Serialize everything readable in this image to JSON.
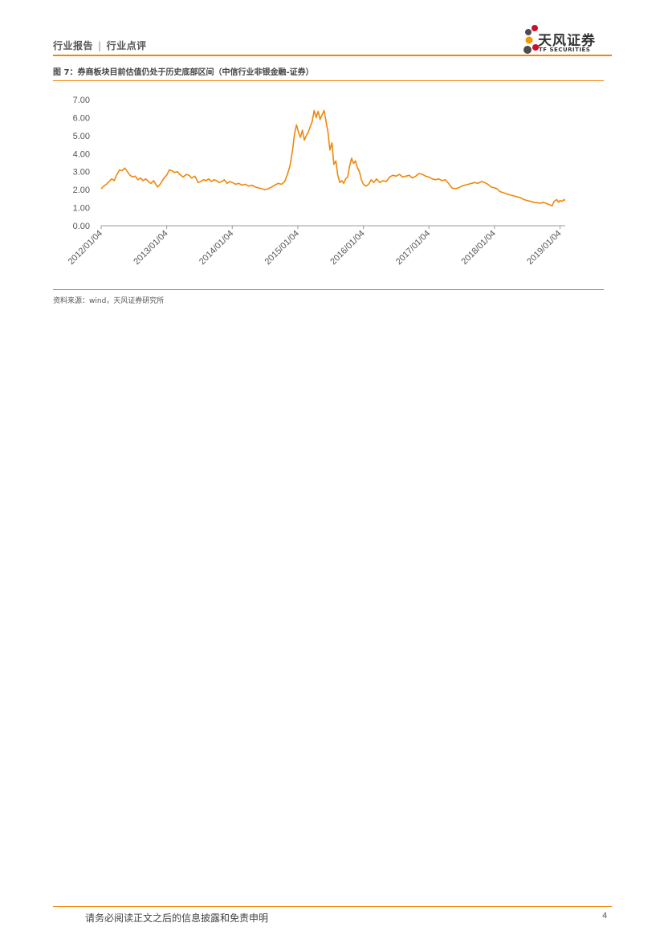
{
  "header": {
    "report_type": "行业报告",
    "separator": "|",
    "category": "行业点评"
  },
  "logo": {
    "name_cn": "天风证券",
    "name_en": "TF SECURITIES"
  },
  "figure": {
    "title": "图 7：券商板块目前估值仍处于历史底部区间（中信行业非银金融-证券）",
    "source": "资料来源：wind，天风证券研究所"
  },
  "footer": {
    "disclaimer": "请务必阅读正文之后的信息披露和免责申明",
    "page_number": "4"
  },
  "colors": {
    "accent": "#F0870A",
    "line": "#F0870A",
    "petal_red": "#C8102E",
    "petal_gray": "#4D4D4D",
    "petal_orange": "#F39800"
  },
  "chart_data": {
    "type": "line",
    "title": "",
    "xlabel": "",
    "ylabel": "",
    "ylim": [
      0,
      7
    ],
    "yticks": [
      "0.00",
      "1.00",
      "2.00",
      "3.00",
      "4.00",
      "5.00",
      "6.00",
      "7.00"
    ],
    "xticks": [
      "2012/01/04",
      "2013/01/04",
      "2014/01/04",
      "2015/01/04",
      "2016/01/04",
      "2017/01/04",
      "2018/01/04",
      "2019/01/04"
    ],
    "xrange": [
      2012.0,
      2019.08
    ],
    "series": [
      {
        "name": "中信行业非银金融-证券",
        "points": [
          [
            2012.0,
            2.05
          ],
          [
            2012.04,
            2.2
          ],
          [
            2012.08,
            2.3
          ],
          [
            2012.12,
            2.45
          ],
          [
            2012.16,
            2.6
          ],
          [
            2012.2,
            2.5
          ],
          [
            2012.24,
            2.85
          ],
          [
            2012.28,
            3.1
          ],
          [
            2012.32,
            3.05
          ],
          [
            2012.36,
            3.2
          ],
          [
            2012.4,
            3.0
          ],
          [
            2012.44,
            2.8
          ],
          [
            2012.48,
            2.7
          ],
          [
            2012.52,
            2.75
          ],
          [
            2012.56,
            2.55
          ],
          [
            2012.6,
            2.65
          ],
          [
            2012.64,
            2.5
          ],
          [
            2012.68,
            2.6
          ],
          [
            2012.72,
            2.45
          ],
          [
            2012.76,
            2.35
          ],
          [
            2012.8,
            2.5
          ],
          [
            2012.86,
            2.15
          ],
          [
            2012.9,
            2.3
          ],
          [
            2012.95,
            2.6
          ],
          [
            2013.0,
            2.8
          ],
          [
            2013.04,
            3.1
          ],
          [
            2013.08,
            3.05
          ],
          [
            2013.12,
            2.95
          ],
          [
            2013.16,
            3.0
          ],
          [
            2013.2,
            2.85
          ],
          [
            2013.25,
            2.7
          ],
          [
            2013.3,
            2.85
          ],
          [
            2013.34,
            2.8
          ],
          [
            2013.38,
            2.65
          ],
          [
            2013.43,
            2.75
          ],
          [
            2013.48,
            2.4
          ],
          [
            2013.52,
            2.45
          ],
          [
            2013.56,
            2.55
          ],
          [
            2013.6,
            2.5
          ],
          [
            2013.64,
            2.6
          ],
          [
            2013.68,
            2.45
          ],
          [
            2013.72,
            2.55
          ],
          [
            2013.76,
            2.5
          ],
          [
            2013.8,
            2.4
          ],
          [
            2013.84,
            2.45
          ],
          [
            2013.88,
            2.55
          ],
          [
            2013.92,
            2.35
          ],
          [
            2013.96,
            2.45
          ],
          [
            2014.0,
            2.4
          ],
          [
            2014.05,
            2.3
          ],
          [
            2014.1,
            2.35
          ],
          [
            2014.15,
            2.25
          ],
          [
            2014.2,
            2.3
          ],
          [
            2014.25,
            2.2
          ],
          [
            2014.3,
            2.25
          ],
          [
            2014.35,
            2.15
          ],
          [
            2014.4,
            2.1
          ],
          [
            2014.45,
            2.05
          ],
          [
            2014.5,
            2.0
          ],
          [
            2014.55,
            2.05
          ],
          [
            2014.6,
            2.15
          ],
          [
            2014.65,
            2.25
          ],
          [
            2014.7,
            2.35
          ],
          [
            2014.75,
            2.3
          ],
          [
            2014.8,
            2.45
          ],
          [
            2014.84,
            2.85
          ],
          [
            2014.88,
            3.3
          ],
          [
            2014.92,
            4.2
          ],
          [
            2014.95,
            5.1
          ],
          [
            2014.98,
            5.6
          ],
          [
            2015.01,
            5.2
          ],
          [
            2015.04,
            4.9
          ],
          [
            2015.07,
            5.3
          ],
          [
            2015.1,
            4.75
          ],
          [
            2015.13,
            5.0
          ],
          [
            2015.16,
            5.2
          ],
          [
            2015.19,
            5.5
          ],
          [
            2015.22,
            5.8
          ],
          [
            2015.25,
            6.4
          ],
          [
            2015.28,
            6.0
          ],
          [
            2015.31,
            6.35
          ],
          [
            2015.34,
            5.9
          ],
          [
            2015.37,
            6.15
          ],
          [
            2015.4,
            6.4
          ],
          [
            2015.43,
            5.8
          ],
          [
            2015.46,
            5.2
          ],
          [
            2015.49,
            4.2
          ],
          [
            2015.52,
            4.6
          ],
          [
            2015.55,
            3.4
          ],
          [
            2015.58,
            3.6
          ],
          [
            2015.61,
            2.8
          ],
          [
            2015.64,
            2.4
          ],
          [
            2015.67,
            2.5
          ],
          [
            2015.7,
            2.35
          ],
          [
            2015.73,
            2.6
          ],
          [
            2015.76,
            2.7
          ],
          [
            2015.79,
            3.3
          ],
          [
            2015.82,
            3.75
          ],
          [
            2015.85,
            3.45
          ],
          [
            2015.88,
            3.6
          ],
          [
            2015.91,
            3.2
          ],
          [
            2015.94,
            3.0
          ],
          [
            2015.97,
            2.55
          ],
          [
            2016.0,
            2.3
          ],
          [
            2016.04,
            2.2
          ],
          [
            2016.08,
            2.3
          ],
          [
            2016.12,
            2.55
          ],
          [
            2016.16,
            2.4
          ],
          [
            2016.2,
            2.6
          ],
          [
            2016.25,
            2.4
          ],
          [
            2016.3,
            2.5
          ],
          [
            2016.35,
            2.45
          ],
          [
            2016.4,
            2.7
          ],
          [
            2016.45,
            2.8
          ],
          [
            2016.5,
            2.75
          ],
          [
            2016.55,
            2.85
          ],
          [
            2016.6,
            2.7
          ],
          [
            2016.65,
            2.75
          ],
          [
            2016.7,
            2.8
          ],
          [
            2016.75,
            2.65
          ],
          [
            2016.8,
            2.75
          ],
          [
            2016.85,
            2.9
          ],
          [
            2016.9,
            2.85
          ],
          [
            2016.95,
            2.75
          ],
          [
            2017.0,
            2.7
          ],
          [
            2017.05,
            2.6
          ],
          [
            2017.1,
            2.55
          ],
          [
            2017.15,
            2.6
          ],
          [
            2017.2,
            2.5
          ],
          [
            2017.25,
            2.55
          ],
          [
            2017.3,
            2.35
          ],
          [
            2017.35,
            2.1
          ],
          [
            2017.4,
            2.05
          ],
          [
            2017.45,
            2.1
          ],
          [
            2017.5,
            2.2
          ],
          [
            2017.55,
            2.25
          ],
          [
            2017.6,
            2.3
          ],
          [
            2017.65,
            2.35
          ],
          [
            2017.7,
            2.4
          ],
          [
            2017.75,
            2.35
          ],
          [
            2017.8,
            2.45
          ],
          [
            2017.85,
            2.4
          ],
          [
            2017.9,
            2.3
          ],
          [
            2017.95,
            2.15
          ],
          [
            2018.0,
            2.1
          ],
          [
            2018.04,
            2.05
          ],
          [
            2018.08,
            1.9
          ],
          [
            2018.12,
            1.85
          ],
          [
            2018.16,
            1.8
          ],
          [
            2018.2,
            1.75
          ],
          [
            2018.25,
            1.7
          ],
          [
            2018.3,
            1.65
          ],
          [
            2018.35,
            1.6
          ],
          [
            2018.4,
            1.55
          ],
          [
            2018.45,
            1.45
          ],
          [
            2018.5,
            1.4
          ],
          [
            2018.55,
            1.35
          ],
          [
            2018.6,
            1.3
          ],
          [
            2018.65,
            1.28
          ],
          [
            2018.7,
            1.25
          ],
          [
            2018.75,
            1.3
          ],
          [
            2018.8,
            1.22
          ],
          [
            2018.85,
            1.15
          ],
          [
            2018.88,
            1.1
          ],
          [
            2018.91,
            1.35
          ],
          [
            2018.95,
            1.45
          ],
          [
            2018.98,
            1.3
          ],
          [
            2019.0,
            1.4
          ],
          [
            2019.03,
            1.35
          ],
          [
            2019.06,
            1.45
          ],
          [
            2019.08,
            1.4
          ]
        ]
      }
    ]
  }
}
